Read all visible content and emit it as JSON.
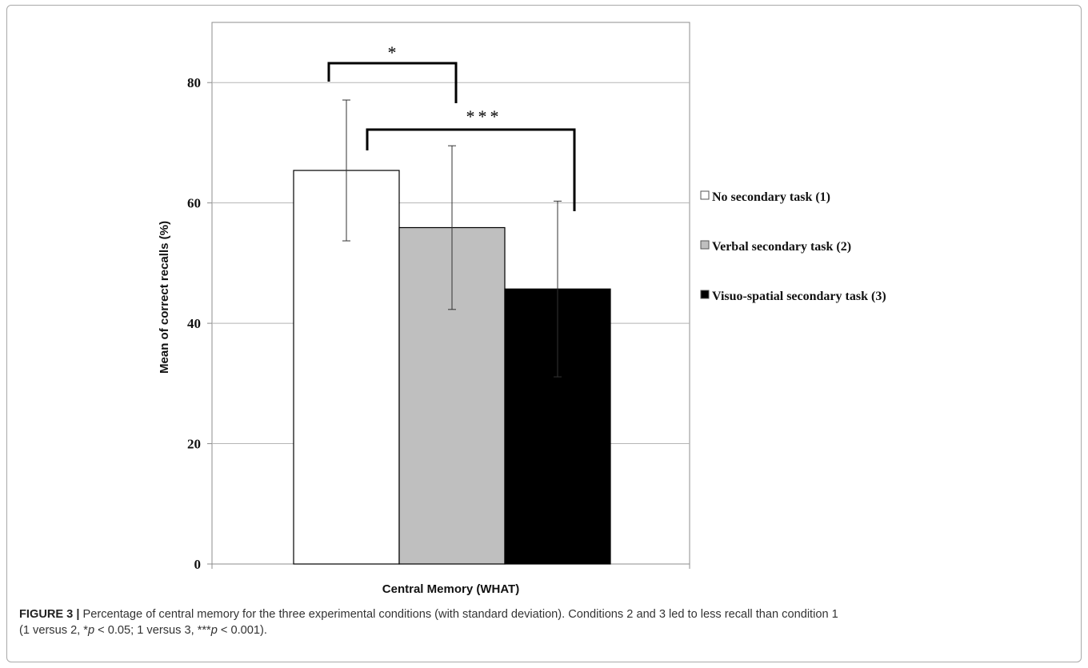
{
  "chart_data": {
    "type": "bar",
    "categories": [
      "Central Memory (WHAT)"
    ],
    "xlabel": "Central Memory (WHAT)",
    "ylabel": "Mean of correct recalls (%)",
    "ylim": [
      0,
      90
    ],
    "yticks": [
      0,
      20,
      40,
      60,
      80
    ],
    "grid": true,
    "legend_position": "right",
    "series": [
      {
        "name": "No secondary task (1)",
        "values": [
          65.4
        ],
        "error": [
          11.7
        ],
        "color": "#ffffff"
      },
      {
        "name": "Verbal secondary task (2)",
        "values": [
          55.9
        ],
        "error": [
          13.6
        ],
        "color": "#bfbfbf"
      },
      {
        "name": "Visuo-spatial secondary task (3)",
        "values": [
          45.7
        ],
        "error": [
          14.6
        ],
        "color": "#000000"
      }
    ],
    "significance": [
      {
        "between": [
          "1",
          "2"
        ],
        "label": "*"
      },
      {
        "between": [
          "1",
          "3"
        ],
        "label": "***"
      }
    ]
  },
  "caption": {
    "label": "FIGURE 3 |",
    "text_part1": " Percentage of central memory for the three experimental conditions (with standard deviation). Conditions 2 and 3 led to less recall than condition 1",
    "text_part2_a": "(1 versus 2, *",
    "p_symbol_1": "p",
    "text_part2_b": " < 0.05; 1 versus 3, ***",
    "p_symbol_2": "p",
    "text_part2_c": " < 0.001)."
  }
}
